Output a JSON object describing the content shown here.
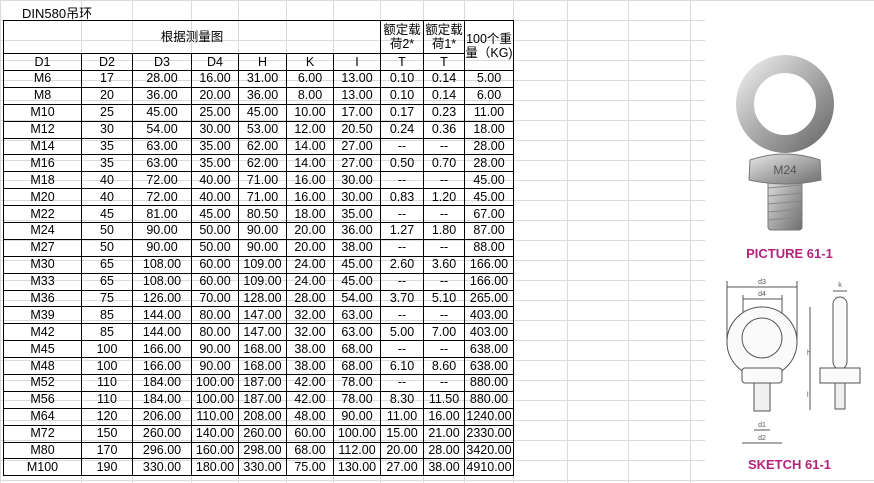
{
  "sheet_title": "DIN580吊环",
  "header": {
    "group_label": "根据测量图",
    "load2_label": "额定载荷2*",
    "load1_label": "额定载荷1*",
    "weight_label": "100个重量（KG)",
    "columns": [
      "D1",
      "D2",
      "D3",
      "D4",
      "H",
      "K",
      "I",
      "T",
      "T"
    ]
  },
  "rows": [
    [
      "M6",
      "17",
      "28.00",
      "16.00",
      "31.00",
      "6.00",
      "13.00",
      "0.10",
      "0.14",
      "5.00"
    ],
    [
      "M8",
      "20",
      "36.00",
      "20.00",
      "36.00",
      "8.00",
      "13.00",
      "0.10",
      "0.14",
      "6.00"
    ],
    [
      "M10",
      "25",
      "45.00",
      "25.00",
      "45.00",
      "10.00",
      "17.00",
      "0.17",
      "0.23",
      "11.00"
    ],
    [
      "M12",
      "30",
      "54.00",
      "30.00",
      "53.00",
      "12.00",
      "20.50",
      "0.24",
      "0.36",
      "18.00"
    ],
    [
      "M14",
      "35",
      "63.00",
      "35.00",
      "62.00",
      "14.00",
      "27.00",
      "--",
      "--",
      "28.00"
    ],
    [
      "M16",
      "35",
      "63.00",
      "35.00",
      "62.00",
      "14.00",
      "27.00",
      "0.50",
      "0.70",
      "28.00"
    ],
    [
      "M18",
      "40",
      "72.00",
      "40.00",
      "71.00",
      "16.00",
      "30.00",
      "--",
      "--",
      "45.00"
    ],
    [
      "M20",
      "40",
      "72.00",
      "40.00",
      "71.00",
      "16.00",
      "30.00",
      "0.83",
      "1.20",
      "45.00"
    ],
    [
      "M22",
      "45",
      "81.00",
      "45.00",
      "80.50",
      "18.00",
      "35.00",
      "--",
      "--",
      "67.00"
    ],
    [
      "M24",
      "50",
      "90.00",
      "50.00",
      "90.00",
      "20.00",
      "36.00",
      "1.27",
      "1.80",
      "87.00"
    ],
    [
      "M27",
      "50",
      "90.00",
      "50.00",
      "90.00",
      "20.00",
      "38.00",
      "--",
      "--",
      "88.00"
    ],
    [
      "M30",
      "65",
      "108.00",
      "60.00",
      "109.00",
      "24.00",
      "45.00",
      "2.60",
      "3.60",
      "166.00"
    ],
    [
      "M33",
      "65",
      "108.00",
      "60.00",
      "109.00",
      "24.00",
      "45.00",
      "--",
      "--",
      "166.00"
    ],
    [
      "M36",
      "75",
      "126.00",
      "70.00",
      "128.00",
      "28.00",
      "54.00",
      "3.70",
      "5.10",
      "265.00"
    ],
    [
      "M39",
      "85",
      "144.00",
      "80.00",
      "147.00",
      "32.00",
      "63.00",
      "--",
      "--",
      "403.00"
    ],
    [
      "M42",
      "85",
      "144.00",
      "80.00",
      "147.00",
      "32.00",
      "63.00",
      "5.00",
      "7.00",
      "403.00"
    ],
    [
      "M45",
      "100",
      "166.00",
      "90.00",
      "168.00",
      "38.00",
      "68.00",
      "--",
      "--",
      "638.00"
    ],
    [
      "M48",
      "100",
      "166.00",
      "90.00",
      "168.00",
      "38.00",
      "68.00",
      "6.10",
      "8.60",
      "638.00"
    ],
    [
      "M52",
      "110",
      "184.00",
      "100.00",
      "187.00",
      "42.00",
      "78.00",
      "--",
      "--",
      "880.00"
    ],
    [
      "M56",
      "110",
      "184.00",
      "100.00",
      "187.00",
      "42.00",
      "78.00",
      "8.30",
      "11.50",
      "880.00"
    ],
    [
      "M64",
      "120",
      "206.00",
      "110.00",
      "208.00",
      "48.00",
      "90.00",
      "11.00",
      "16.00",
      "1240.00"
    ],
    [
      "M72",
      "150",
      "260.00",
      "140.00",
      "260.00",
      "60.00",
      "100.00",
      "15.00",
      "21.00",
      "2330.00"
    ],
    [
      "M80",
      "170",
      "296.00",
      "160.00",
      "298.00",
      "68.00",
      "112.00",
      "20.00",
      "28.00",
      "3420.00"
    ],
    [
      "M100",
      "190",
      "330.00",
      "180.00",
      "330.00",
      "75.00",
      "130.00",
      "27.00",
      "38.00",
      "4910.00"
    ]
  ],
  "figures": {
    "picture_caption": "PICTURE 61-1",
    "sketch_caption": "SKETCH 61-1",
    "bolt_marking": "M24",
    "sketch_labels": {
      "d3": "d3",
      "d4": "d4",
      "h": "h",
      "l": "l",
      "d1": "d1",
      "d2": "d2",
      "k": "k"
    },
    "caption_color": "#b5237a"
  }
}
